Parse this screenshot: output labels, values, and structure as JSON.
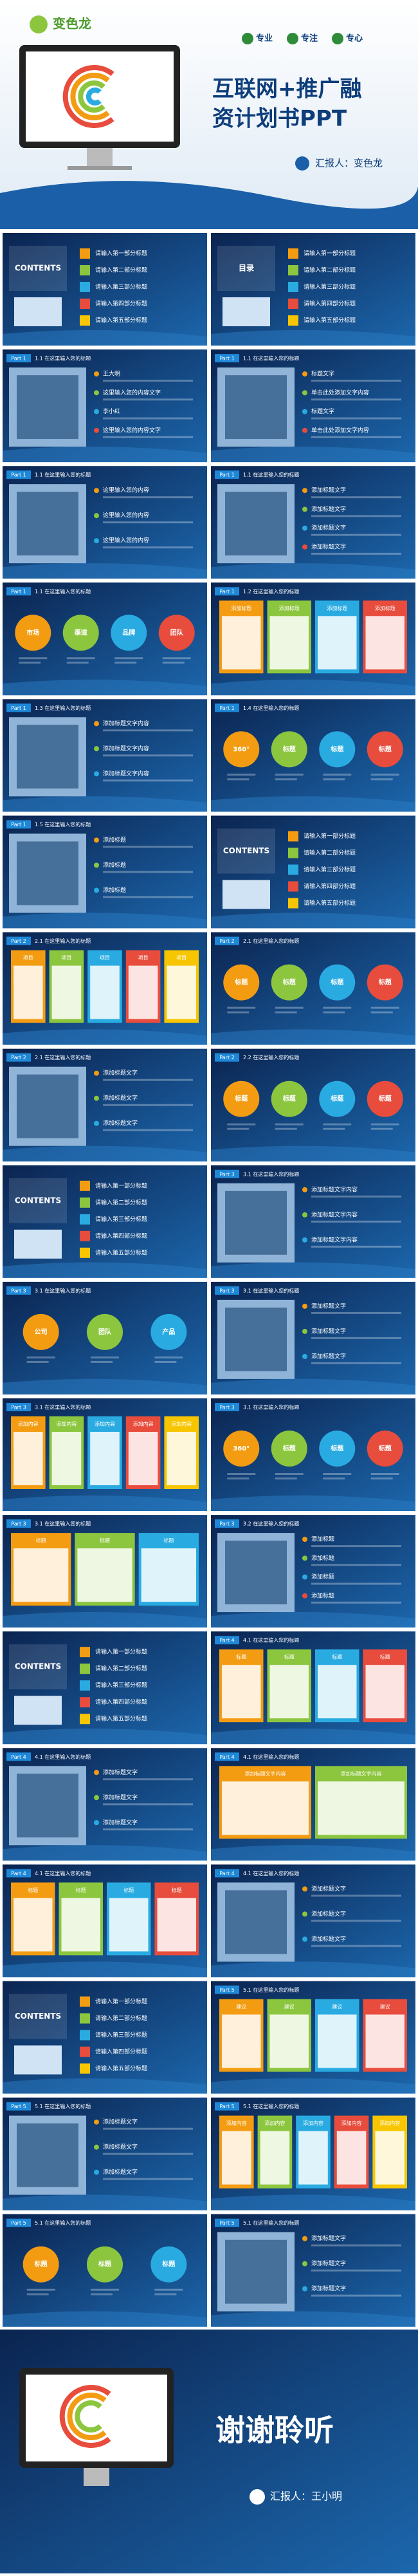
{
  "cover": {
    "logo": "变色龙",
    "tags": [
      "专业",
      "专注",
      "专心"
    ],
    "title_lines": [
      "互联网+推广融",
      "资计划书PPT"
    ],
    "reporter": "汇报人：变色龙"
  },
  "slides": [
    {
      "kind": "toc",
      "label": "CONTENTS",
      "items": [
        "请输入第一部分标题",
        "请输入第二部分标题",
        "请输入第三部分标题",
        "请输入第四部分标题",
        "请输入第五部分标题"
      ]
    },
    {
      "kind": "toc",
      "label": "目录",
      "items": [
        "请输入第一部分标题",
        "请输入第二部分标题",
        "请输入第三部分标题",
        "请输入第四部分标题",
        "请输入第五部分标题"
      ]
    },
    {
      "kind": "text",
      "part": "Part 1",
      "heading": "1.1 在这里输入您的标题",
      "items": [
        "王大明",
        "这里输入您的内容文字",
        "李小红",
        "这里输入您的内容文字"
      ]
    },
    {
      "kind": "text",
      "part": "Part 1",
      "heading": "1.1 在这里输入您的标题",
      "items": [
        "标题文字",
        "单击此处添加文字内容",
        "标题文字",
        "单击此处添加文字内容"
      ]
    },
    {
      "kind": "text",
      "part": "Part 1",
      "heading": "1.1 在这里输入您的标题",
      "items": [
        "这里输入您的内容",
        "这里输入您的内容",
        "这里输入您的内容"
      ]
    },
    {
      "kind": "text",
      "part": "Part 1",
      "heading": "1.1 在这里输入您的标题",
      "items": [
        "添加标题文字",
        "添加标题文字",
        "添加标题文字",
        "添加标题文字"
      ]
    },
    {
      "kind": "circles",
      "part": "Part 1",
      "heading": "1.1 在这里输入您的标题",
      "items": [
        "市场",
        "渠道",
        "品牌",
        "团队"
      ]
    },
    {
      "kind": "boxes",
      "part": "Part 1",
      "heading": "1.2 在这里输入您的标题",
      "items": [
        "添加标题",
        "添加标题",
        "添加标题",
        "添加标题"
      ]
    },
    {
      "kind": "text",
      "part": "Part 1",
      "heading": "1.3 在这里输入您的标题",
      "items": [
        "添加标题文字内容",
        "添加标题文字内容",
        "添加标题文字内容"
      ]
    },
    {
      "kind": "circles",
      "part": "Part 1",
      "heading": "1.4 在这里输入您的标题",
      "items": [
        "360°",
        "标题",
        "标题",
        "标题"
      ]
    },
    {
      "kind": "text",
      "part": "Part 1",
      "heading": "1.5 在这里输入您的标题",
      "items": [
        "添加标题",
        "添加标题",
        "添加标题"
      ]
    },
    {
      "kind": "toc",
      "label": "CONTENTS",
      "items": [
        "请输入第一部分标题",
        "请输入第二部分标题",
        "请输入第三部分标题",
        "请输入第四部分标题",
        "请输入第五部分标题"
      ]
    },
    {
      "kind": "boxes",
      "part": "Part 2",
      "heading": "2.1 在这里输入您的标题",
      "items": [
        "项目",
        "项目",
        "项目",
        "项目",
        "项目"
      ]
    },
    {
      "kind": "circles",
      "part": "Part 2",
      "heading": "2.1 在这里输入您的标题",
      "items": [
        "标题",
        "标题",
        "标题",
        "标题"
      ]
    },
    {
      "kind": "text",
      "part": "Part 2",
      "heading": "2.1 在这里输入您的标题",
      "items": [
        "添加标题文字",
        "添加标题文字",
        "添加标题文字"
      ]
    },
    {
      "kind": "circles",
      "part": "Part 2",
      "heading": "2.2 在这里输入您的标题",
      "items": [
        "标题",
        "标题",
        "标题",
        "标题"
      ]
    },
    {
      "kind": "toc",
      "label": "CONTENTS",
      "items": [
        "请输入第一部分标题",
        "请输入第二部分标题",
        "请输入第三部分标题",
        "请输入第四部分标题",
        "请输入第五部分标题"
      ]
    },
    {
      "kind": "text",
      "part": "Part 3",
      "heading": "3.1 在这里输入您的标题",
      "items": [
        "添加标题文字内容",
        "添加标题文字内容",
        "添加标题文字内容"
      ]
    },
    {
      "kind": "circles",
      "part": "Part 3",
      "heading": "3.1 在这里输入您的标题",
      "items": [
        "公司",
        "团队",
        "产品"
      ]
    },
    {
      "kind": "text",
      "part": "Part 3",
      "heading": "3.1 在这里输入您的标题",
      "items": [
        "添加标题文字",
        "添加标题文字",
        "添加标题文字"
      ]
    },
    {
      "kind": "boxes",
      "part": "Part 3",
      "heading": "3.1 在这里输入您的标题",
      "items": [
        "添加内容",
        "添加内容",
        "添加内容",
        "添加内容",
        "添加内容"
      ]
    },
    {
      "kind": "circles",
      "part": "Part 3",
      "heading": "3.1 在这里输入您的标题",
      "items": [
        "360°",
        "标题",
        "标题",
        "标题"
      ]
    },
    {
      "kind": "boxes",
      "part": "Part 3",
      "heading": "3.1 在这里输入您的标题",
      "items": [
        "标题",
        "标题",
        "标题"
      ]
    },
    {
      "kind": "text",
      "part": "Part 3",
      "heading": "3.2 在这里输入您的标题",
      "items": [
        "添加标题",
        "添加标题",
        "添加标题",
        "添加标题"
      ]
    },
    {
      "kind": "toc",
      "label": "CONTENTS",
      "items": [
        "请输入第一部分标题",
        "请输入第二部分标题",
        "请输入第三部分标题",
        "请输入第四部分标题",
        "请输入第五部分标题"
      ]
    },
    {
      "kind": "boxes",
      "part": "Part 4",
      "heading": "4.1 在这里输入您的标题",
      "items": [
        "标题",
        "标题",
        "标题",
        "标题"
      ]
    },
    {
      "kind": "text",
      "part": "Part 4",
      "heading": "4.1 在这里输入您的标题",
      "items": [
        "添加标题文字",
        "添加标题文字",
        "添加标题文字"
      ]
    },
    {
      "kind": "boxes",
      "part": "Part 4",
      "heading": "4.1 在这里输入您的标题",
      "items": [
        "添加标题文字内容",
        "添加标题文字内容"
      ]
    },
    {
      "kind": "boxes",
      "part": "Part 4",
      "heading": "4.1 在这里输入您的标题",
      "items": [
        "标题",
        "标题",
        "标题",
        "标题"
      ]
    },
    {
      "kind": "text",
      "part": "Part 4",
      "heading": "4.1 在这里输入您的标题",
      "items": [
        "添加标题文字",
        "添加标题文字",
        "添加标题文字"
      ]
    },
    {
      "kind": "toc",
      "label": "CONTENTS",
      "items": [
        "请输入第一部分标题",
        "请输入第二部分标题",
        "请输入第三部分标题",
        "请输入第四部分标题",
        "请输入第五部分标题"
      ]
    },
    {
      "kind": "boxes",
      "part": "Part 5",
      "heading": "5.1 在这里输入您的标题",
      "items": [
        "建议",
        "建议",
        "建议",
        "建议"
      ]
    },
    {
      "kind": "text",
      "part": "Part 5",
      "heading": "5.1 在这里输入您的标题",
      "items": [
        "添加标题文字",
        "添加标题文字",
        "添加标题文字"
      ]
    },
    {
      "kind": "boxes",
      "part": "Part 5",
      "heading": "5.1 在这里输入您的标题",
      "items": [
        "添加内容",
        "添加内容",
        "添加内容",
        "添加内容",
        "添加内容"
      ]
    },
    {
      "kind": "circles",
      "part": "Part 5",
      "heading": "5.1 在这里输入您的标题",
      "items": [
        "标题",
        "标题",
        "标题"
      ]
    },
    {
      "kind": "text",
      "part": "Part 5",
      "heading": "5.1 在这里输入您的标题",
      "items": [
        "添加标题文字",
        "添加标题文字",
        "添加标题文字"
      ]
    }
  ],
  "ending": {
    "title": "谢谢聆听",
    "reporter": "汇报人：王小明"
  }
}
